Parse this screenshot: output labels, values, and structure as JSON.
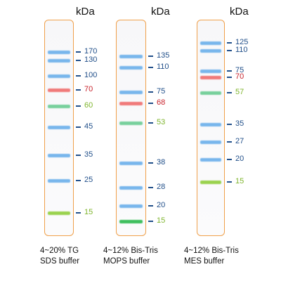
{
  "colors": {
    "lane_border": "#f0a04a",
    "tick": "#22508a",
    "label_blue": "#22508a",
    "label_red": "#c8232c",
    "label_green": "#7fb52e",
    "band_blue": "#78b6ec",
    "band_red": "#f07a7a",
    "band_green": "#78d09c",
    "band_lime": "#9ad24e"
  },
  "panels": [
    {
      "unit": "kDa",
      "caption": [
        "4~20% TG",
        "SDS buffer"
      ],
      "markers": [
        {
          "kda": "170",
          "color": "blue"
        },
        {
          "kda": "130",
          "color": "blue"
        },
        {
          "kda": "100",
          "color": "blue"
        },
        {
          "kda": "70",
          "color": "red"
        },
        {
          "kda": "60",
          "color": "green"
        },
        {
          "kda": "45",
          "color": "blue"
        },
        {
          "kda": "35",
          "color": "blue"
        },
        {
          "kda": "25",
          "color": "blue"
        },
        {
          "kda": "15",
          "color": "green"
        }
      ]
    },
    {
      "unit": "kDa",
      "caption": [
        "4~12% Bis-Tris",
        "MOPS buffer"
      ],
      "markers": [
        {
          "kda": "135",
          "color": "blue"
        },
        {
          "kda": "110",
          "color": "blue"
        },
        {
          "kda": "75",
          "color": "blue"
        },
        {
          "kda": "68",
          "color": "red"
        },
        {
          "kda": "53",
          "color": "green"
        },
        {
          "kda": "38",
          "color": "blue"
        },
        {
          "kda": "28",
          "color": "blue"
        },
        {
          "kda": "20",
          "color": "blue"
        },
        {
          "kda": "15",
          "color": "green"
        }
      ]
    },
    {
      "unit": "kDa",
      "caption": [
        "4~12% Bis-Tris",
        "MES buffer"
      ],
      "markers": [
        {
          "kda": "125",
          "color": "blue"
        },
        {
          "kda": "110",
          "color": "blue"
        },
        {
          "kda": "75",
          "color": "blue"
        },
        {
          "kda": "70",
          "color": "red"
        },
        {
          "kda": "57",
          "color": "green"
        },
        {
          "kda": "35",
          "color": "blue"
        },
        {
          "kda": "27",
          "color": "blue"
        },
        {
          "kda": "20",
          "color": "blue"
        },
        {
          "kda": "15",
          "color": "green"
        }
      ]
    }
  ]
}
